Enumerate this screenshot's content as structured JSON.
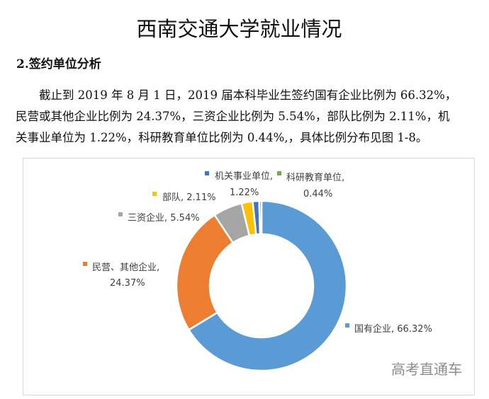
{
  "document": {
    "title": "西南交通大学就业情况",
    "section_heading": "2.签约单位分析",
    "paragraph_lines": [
      "　　截止到 2019 年 8 月 1 日，2019 届本科毕业生签约国有企业比例为 66.32%，",
      "民营或其他企业比例为 24.37%，三资企业比例为 5.54%，部队比例为 2.11%，机",
      "关事业单位为 1.22%，科研教育单位比例为 0.44%,，具体比例分布见图 1-8。"
    ]
  },
  "watermark": "高考直通车",
  "chart_data": {
    "type": "pie",
    "subtype": "donut",
    "title": "",
    "categories": [
      "国有企业",
      "民营、其他企业",
      "三资企业",
      "部队",
      "机关事业单位",
      "科研教育单位"
    ],
    "values": [
      66.32,
      24.37,
      5.54,
      2.11,
      1.22,
      0.44
    ],
    "unit": "%",
    "colors": [
      "#5B9BD5",
      "#ED7D31",
      "#A5A5A5",
      "#FFC000",
      "#4472C4",
      "#70AD47"
    ],
    "labels": [
      {
        "name": "国有企业",
        "text_line1": "国有企业, 66.32%",
        "text_line2": ""
      },
      {
        "name": "民营、其他企业",
        "text_line1": "民营、其他企业,",
        "text_line2": "24.37%"
      },
      {
        "name": "三资企业",
        "text_line1": "三资企业, 5.54%",
        "text_line2": ""
      },
      {
        "name": "部队",
        "text_line1": "部队, 2.11%",
        "text_line2": ""
      },
      {
        "name": "机关事业单位",
        "text_line1": "机关事业单位,",
        "text_line2": "1.22%"
      },
      {
        "name": "科研教育单位",
        "text_line1": "科研教育单位,",
        "text_line2": "0.44%"
      }
    ],
    "legend": "none (data labels with color markers)",
    "start_angle_deg": 0,
    "direction": "clockwise"
  }
}
